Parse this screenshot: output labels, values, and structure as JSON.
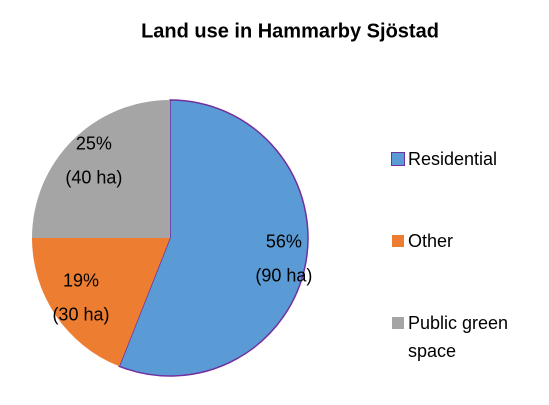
{
  "chart_data": {
    "type": "pie",
    "title": "Land use in Hammarby Sjöstad",
    "categories": [
      "Residential",
      "Other",
      "Public green space"
    ],
    "values": [
      56,
      19,
      25
    ],
    "value_labels": [
      [
        "56%",
        "(90 ha)"
      ],
      [
        "19%",
        "(30 ha)"
      ],
      [
        "25%",
        "(40 ha)"
      ]
    ],
    "colors": [
      "#5b9bd5",
      "#ed7d31",
      "#a5a5a5"
    ],
    "legend": "right"
  }
}
